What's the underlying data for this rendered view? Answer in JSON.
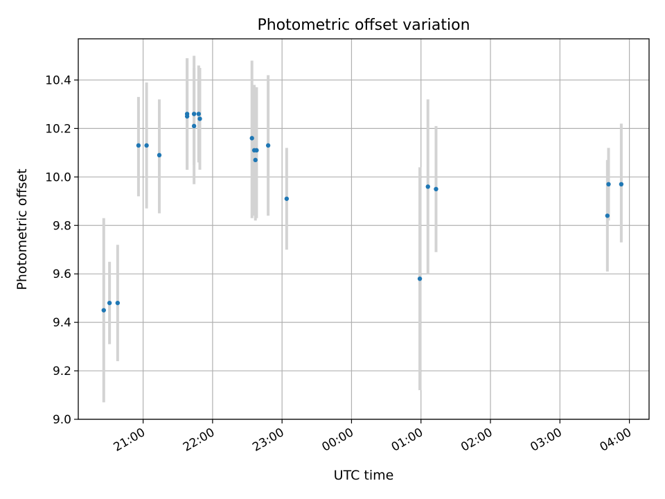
{
  "chart_data": {
    "type": "scatter",
    "title": "Photometric offset variation",
    "xlabel": "UTC time",
    "ylabel": "Photometric offset",
    "x_axis_type": "time",
    "xlim": [
      "20:04",
      "04:17"
    ],
    "ylim": [
      9.0,
      10.57
    ],
    "x_tick_labels": [
      "21:00",
      "22:00",
      "23:00",
      "00:00",
      "01:00",
      "02:00",
      "03:00",
      "04:00"
    ],
    "y_tick_labels": [
      "9.0",
      "9.2",
      "9.4",
      "9.6",
      "9.8",
      "10.0",
      "10.2",
      "10.4"
    ],
    "y_ticks": [
      9.0,
      9.2,
      9.4,
      9.6,
      9.8,
      10.0,
      10.2,
      10.4
    ],
    "grid": true,
    "legend": "none",
    "marker_color": "#1f77b4",
    "errorbar_color": "#d3d3d3",
    "points": [
      {
        "time": "20:26",
        "y": 9.45,
        "ylow": 9.07,
        "yhigh": 9.83
      },
      {
        "time": "20:31",
        "y": 9.48,
        "ylow": 9.31,
        "yhigh": 9.65
      },
      {
        "time": "20:38",
        "y": 9.48,
        "ylow": 9.24,
        "yhigh": 9.72
      },
      {
        "time": "20:56",
        "y": 10.13,
        "ylow": 9.92,
        "yhigh": 10.33
      },
      {
        "time": "21:03",
        "y": 10.13,
        "ylow": 9.87,
        "yhigh": 10.39
      },
      {
        "time": "21:14",
        "y": 10.09,
        "ylow": 9.85,
        "yhigh": 10.32
      },
      {
        "time": "21:38",
        "y": 10.26,
        "ylow": 10.03,
        "yhigh": 10.49
      },
      {
        "time": "21:38",
        "y": 10.25,
        "ylow": 10.03,
        "yhigh": 10.49
      },
      {
        "time": "21:44",
        "y": 10.21,
        "ylow": 9.97,
        "yhigh": 10.45
      },
      {
        "time": "21:44",
        "y": 10.26,
        "ylow": 10.05,
        "yhigh": 10.5
      },
      {
        "time": "21:48",
        "y": 10.26,
        "ylow": 10.06,
        "yhigh": 10.46
      },
      {
        "time": "21:49",
        "y": 10.24,
        "ylow": 10.03,
        "yhigh": 10.45
      },
      {
        "time": "22:34",
        "y": 10.16,
        "ylow": 9.83,
        "yhigh": 10.48
      },
      {
        "time": "22:36",
        "y": 10.11,
        "ylow": 9.84,
        "yhigh": 10.38
      },
      {
        "time": "22:37",
        "y": 10.07,
        "ylow": 9.82,
        "yhigh": 10.37
      },
      {
        "time": "22:38",
        "y": 10.11,
        "ylow": 9.83,
        "yhigh": 10.37
      },
      {
        "time": "22:48",
        "y": 10.13,
        "ylow": 9.84,
        "yhigh": 10.42
      },
      {
        "time": "23:04",
        "y": 9.91,
        "ylow": 9.7,
        "yhigh": 10.12
      },
      {
        "time": "00:59",
        "y": 9.58,
        "ylow": 9.12,
        "yhigh": 10.04
      },
      {
        "time": "01:06",
        "y": 9.96,
        "ylow": 9.6,
        "yhigh": 10.32
      },
      {
        "time": "01:13",
        "y": 9.95,
        "ylow": 9.69,
        "yhigh": 10.21
      },
      {
        "time": "03:41",
        "y": 9.84,
        "ylow": 9.61,
        "yhigh": 10.07
      },
      {
        "time": "03:42",
        "y": 9.97,
        "ylow": 9.82,
        "yhigh": 10.12
      },
      {
        "time": "03:53",
        "y": 9.97,
        "ylow": 9.73,
        "yhigh": 10.22
      }
    ]
  }
}
